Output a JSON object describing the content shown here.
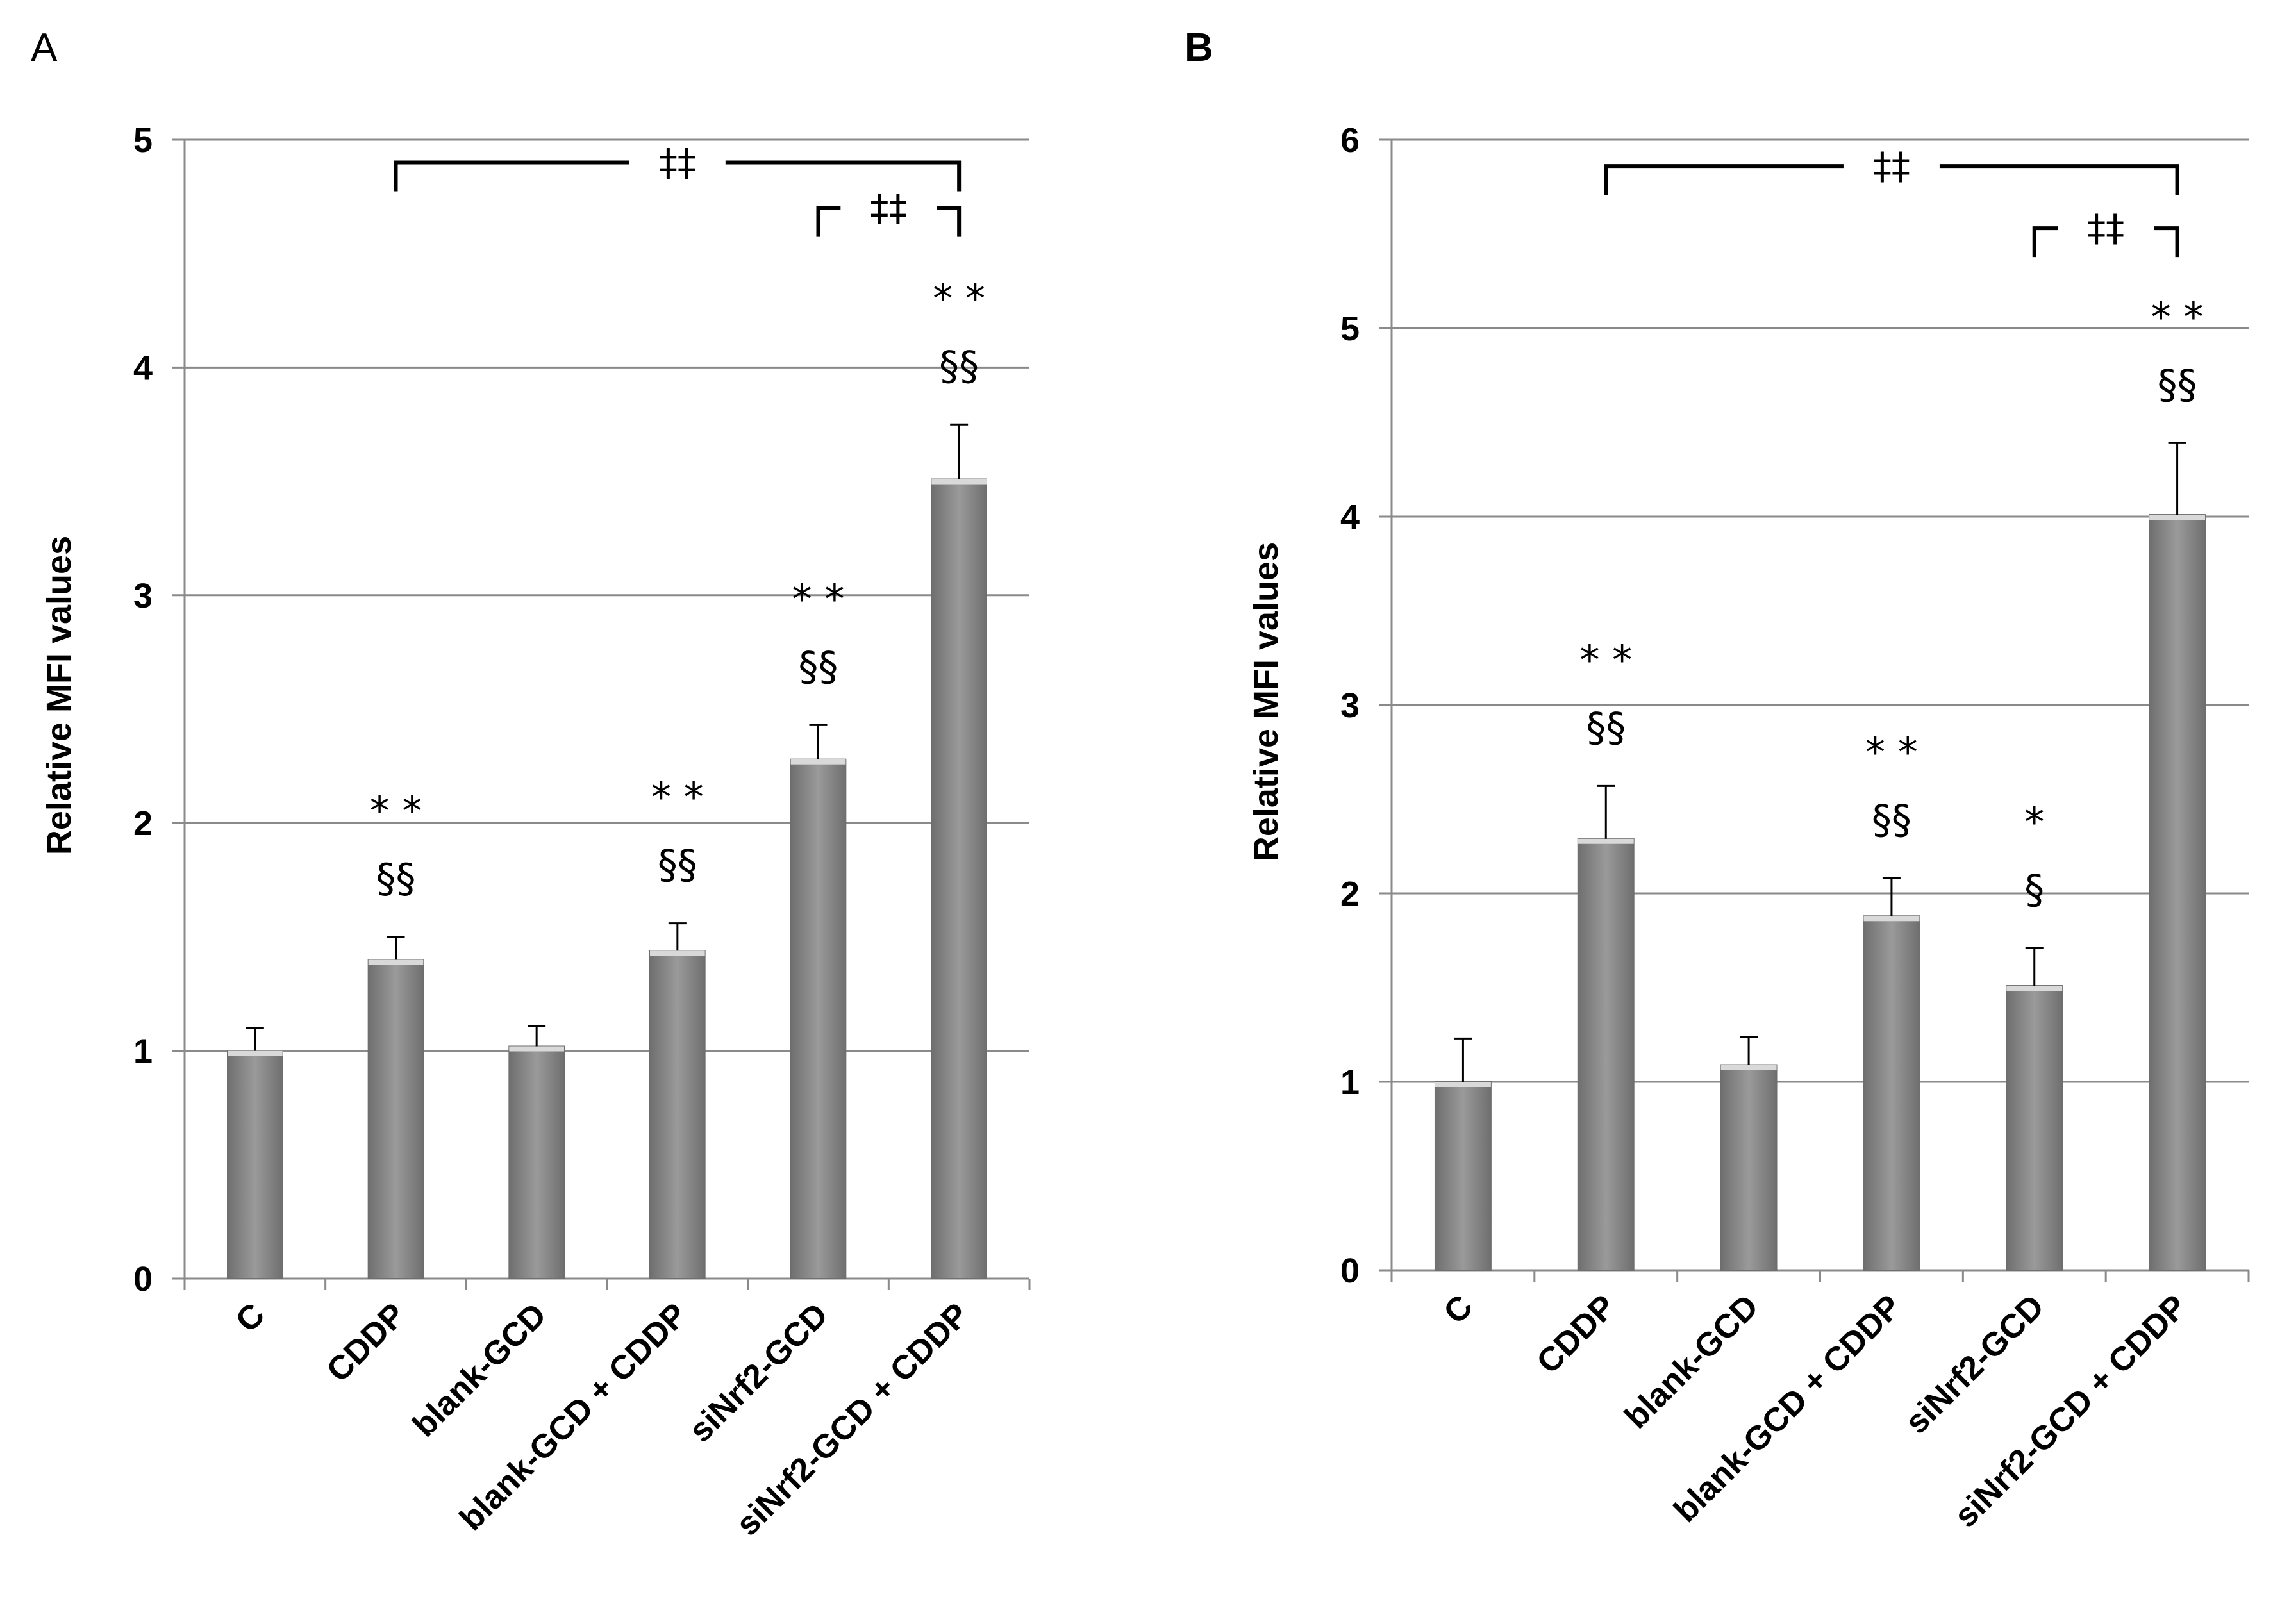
{
  "chart_data": [
    {
      "panel": "A",
      "type": "bar",
      "ylabel": "Relative MFI values",
      "xlabel": "",
      "ylim": [
        0,
        5
      ],
      "yticks": [
        "0",
        "1",
        "2",
        "3",
        "4",
        "5"
      ],
      "grid": true,
      "categories": [
        "C",
        "CDDP",
        "blank-GCD",
        "blank-GCD + CDDP",
        "siNrf2-GCD",
        "siNrf2-GCD + CDDP"
      ],
      "values": [
        1.0,
        1.4,
        1.02,
        1.44,
        2.28,
        3.51
      ],
      "errors": [
        0.1,
        0.1,
        0.09,
        0.12,
        0.15,
        0.24
      ],
      "significance": [
        {
          "star": "",
          "section": ""
        },
        {
          "star": "**",
          "section": "§§"
        },
        {
          "star": "",
          "section": ""
        },
        {
          "star": "**",
          "section": "§§"
        },
        {
          "star": "**",
          "section": "§§"
        },
        {
          "star": "**",
          "section": "§§"
        }
      ],
      "brackets": [
        {
          "from": 1,
          "to": 5,
          "label": "‡‡",
          "y": 4.9
        },
        {
          "from": 4,
          "to": 5,
          "label": "‡‡",
          "y": 4.7
        }
      ]
    },
    {
      "panel": "B",
      "type": "bar",
      "ylabel": "Relative MFI values",
      "xlabel": "",
      "ylim": [
        0,
        6
      ],
      "yticks": [
        "0",
        "1",
        "2",
        "3",
        "4",
        "5",
        "6"
      ],
      "grid": true,
      "categories": [
        "C",
        "CDDP",
        "blank-GCD",
        "blank-GCD + CDDP",
        "siNrf2-GCD",
        "siNrf2-GCD + CDDP"
      ],
      "values": [
        1.0,
        2.29,
        1.09,
        1.88,
        1.51,
        4.01
      ],
      "errors": [
        0.23,
        0.28,
        0.15,
        0.2,
        0.2,
        0.38
      ],
      "significance": [
        {
          "star": "",
          "section": ""
        },
        {
          "star": "**",
          "section": "§§"
        },
        {
          "star": "",
          "section": ""
        },
        {
          "star": "**",
          "section": "§§"
        },
        {
          "star": "*",
          "section": "§"
        },
        {
          "star": "**",
          "section": "§§"
        }
      ],
      "brackets": [
        {
          "from": 1,
          "to": 5,
          "label": "‡‡",
          "y": 5.86
        },
        {
          "from": 4,
          "to": 5,
          "label": "‡‡",
          "y": 5.53
        }
      ]
    }
  ],
  "colors": {
    "bar_fill": "#8c8c8c",
    "bar_edge": "#6e6e6e",
    "grid": "#8a8a8a",
    "axis": "#8a8a8a",
    "error": "#000000",
    "bracket": "#000000"
  }
}
